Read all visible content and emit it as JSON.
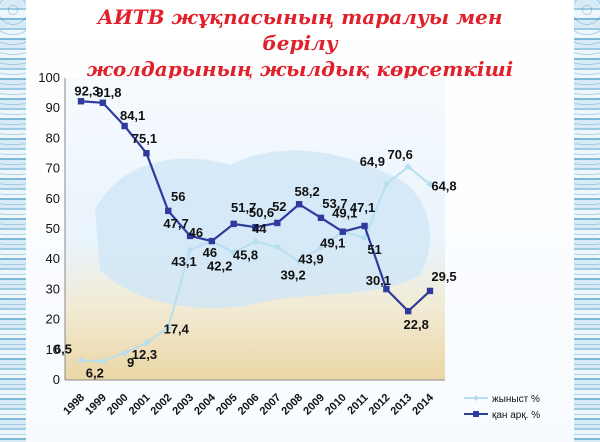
{
  "title_line1": "АИТВ жұқпасының таралуы мен берілу",
  "title_line2": "жолдарының жылдық көрсеткіші",
  "colors": {
    "title": "#e0202a",
    "series_sexual": "#b8dff0",
    "series_blood": "#2e3a9c"
  },
  "chart_data": {
    "type": "line",
    "categories": [
      "1998",
      "1999",
      "2000",
      "2001",
      "2002",
      "2003",
      "2004",
      "2005",
      "2006",
      "2007",
      "2008",
      "2009",
      "2010",
      "2011",
      "2012",
      "2013",
      "2014"
    ],
    "ylim": [
      0,
      100
    ],
    "yticks": [
      0,
      10,
      20,
      30,
      40,
      50,
      60,
      70,
      80,
      90,
      100
    ],
    "grid": false,
    "legend_position": "bottom-right",
    "series": [
      {
        "name": "жыныст %",
        "values": [
          6.5,
          6.2,
          9,
          12.3,
          17.4,
          43.1,
          46,
          42.2,
          45.8,
          44,
          39.2,
          43.9,
          49.1,
          47.1,
          64.9,
          70.6,
          64.8
        ],
        "labels": [
          "6,5",
          "6,2",
          "9",
          "12,3",
          "17,4",
          "43,1",
          "46",
          "42,2",
          "45,8",
          "44",
          "39,2",
          "43,9",
          "49,1",
          "47,1",
          "64,9",
          "70,6",
          "64,8"
        ]
      },
      {
        "name": "қан арқ. %",
        "values": [
          92.3,
          91.8,
          84.1,
          75.1,
          56,
          47.7,
          46,
          51.7,
          50.6,
          52,
          58.2,
          53.7,
          49.1,
          51,
          30.1,
          22.8,
          29.5
        ],
        "labels": [
          "92,3",
          "91,8",
          "84,1",
          "75,1",
          "56",
          "47,7",
          "46",
          "51,7",
          "50,6",
          "52",
          "58,2",
          "53,7",
          "49,1",
          "51",
          "30,1",
          "22,8",
          "29,5"
        ]
      }
    ]
  }
}
